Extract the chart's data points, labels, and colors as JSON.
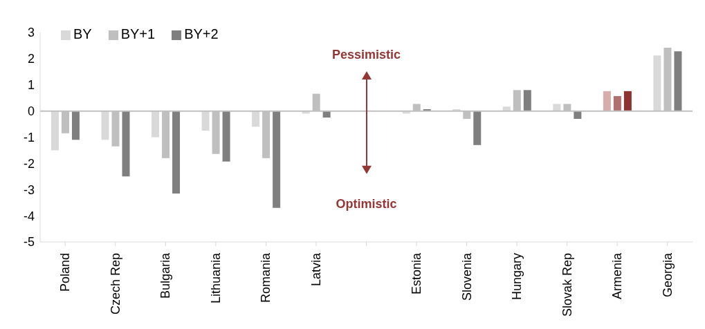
{
  "chart_data": {
    "type": "bar",
    "categories": [
      "Poland",
      "Czech Rep",
      "Bulgaria",
      "Lithuania",
      "Romania",
      "Latvia",
      null,
      "Estonia",
      "Slovenia",
      "Hungary",
      "Slovak Rep",
      "Armenia",
      "Georgia"
    ],
    "series": [
      {
        "name": "BY",
        "color": "#d9d9d9",
        "colors": [
          "#d9d9d9",
          "#d9d9d9",
          "#d9d9d9",
          "#d9d9d9",
          "#d9d9d9",
          "#d9d9d9",
          "#d9d9d9",
          "#d9d9d9",
          "#d9d9d9",
          "#d9d9d9",
          "#d9d9d9",
          "#d5aeab",
          "#d9d9d9"
        ],
        "values": [
          -1.5,
          -1.1,
          -1.0,
          -0.75,
          -0.6,
          -0.1,
          null,
          -0.1,
          0.07,
          0.17,
          0.27,
          0.76,
          2.12
        ]
      },
      {
        "name": "BY+1",
        "color": "#bfbfbf",
        "colors": [
          "#bfbfbf",
          "#bfbfbf",
          "#bfbfbf",
          "#bfbfbf",
          "#bfbfbf",
          "#bfbfbf",
          "#bfbfbf",
          "#bfbfbf",
          "#bfbfbf",
          "#bfbfbf",
          "#bfbfbf",
          "#b07070",
          "#bfbfbf"
        ],
        "values": [
          -0.85,
          -1.35,
          -1.8,
          -1.64,
          -1.8,
          0.66,
          null,
          0.27,
          -0.3,
          0.8,
          0.27,
          0.57,
          2.42
        ]
      },
      {
        "name": "BY+2",
        "color": "#7f7f7f",
        "colors": [
          "#7f7f7f",
          "#7f7f7f",
          "#7f7f7f",
          "#7f7f7f",
          "#7f7f7f",
          "#7f7f7f",
          "#7f7f7f",
          "#7f7f7f",
          "#7f7f7f",
          "#7f7f7f",
          "#7f7f7f",
          "#8e3131",
          "#7f7f7f"
        ],
        "values": [
          -1.1,
          -2.5,
          -3.15,
          -1.93,
          -3.7,
          -0.25,
          null,
          0.07,
          -1.3,
          0.8,
          -0.3,
          0.76,
          2.28
        ]
      }
    ],
    "ylim": [
      -5,
      3
    ],
    "yticks": [
      -5,
      -4,
      -3,
      -2,
      -1,
      0,
      1,
      2,
      3
    ],
    "ref_lines": [
      {
        "axis": "y",
        "value": 0,
        "color": "#bfbfbf"
      }
    ],
    "annotations": [
      "Pessimistic",
      "Optimistic"
    ],
    "legend": "top left"
  }
}
